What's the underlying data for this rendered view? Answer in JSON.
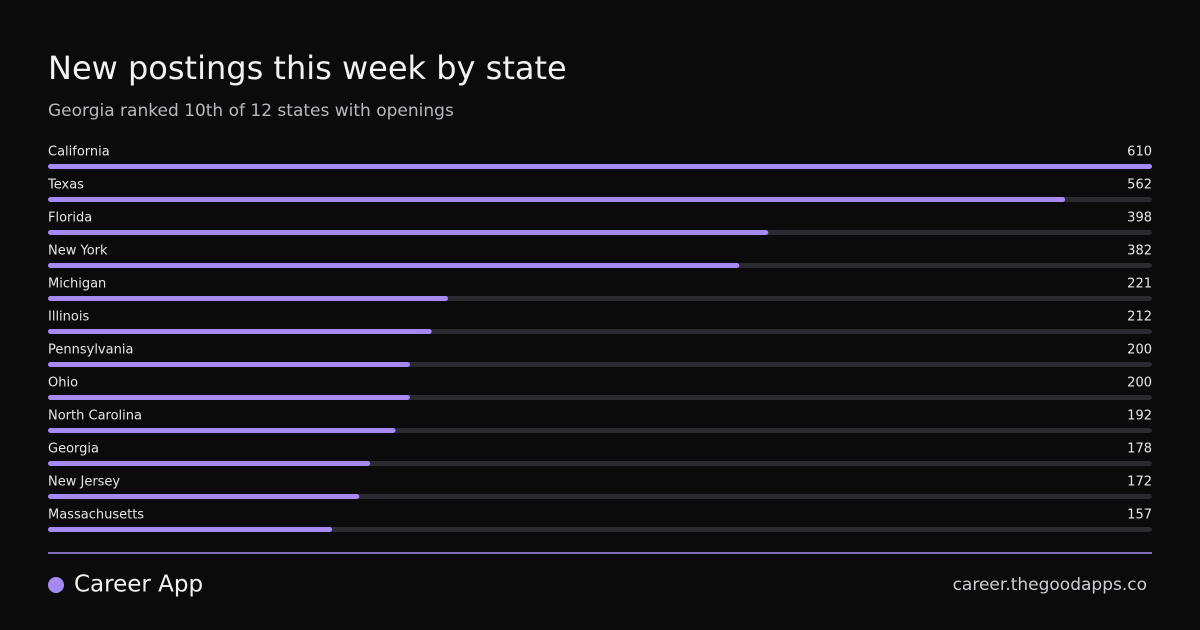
{
  "chart_data": {
    "type": "bar",
    "orientation": "horizontal",
    "title": "New postings this week by state",
    "subtitle": "Georgia ranked 10th of 12 states with openings",
    "categories": [
      "California",
      "Texas",
      "Florida",
      "New York",
      "Michigan",
      "Illinois",
      "Pennsylvania",
      "Ohio",
      "North Carolina",
      "Georgia",
      "New Jersey",
      "Massachusetts"
    ],
    "values": [
      610,
      562,
      398,
      382,
      221,
      212,
      200,
      200,
      192,
      178,
      172,
      157
    ],
    "color": "#a68af4",
    "xlim": [
      0,
      610
    ]
  },
  "footer": {
    "brand": "Career App",
    "url": "career.thegoodapps.co"
  }
}
